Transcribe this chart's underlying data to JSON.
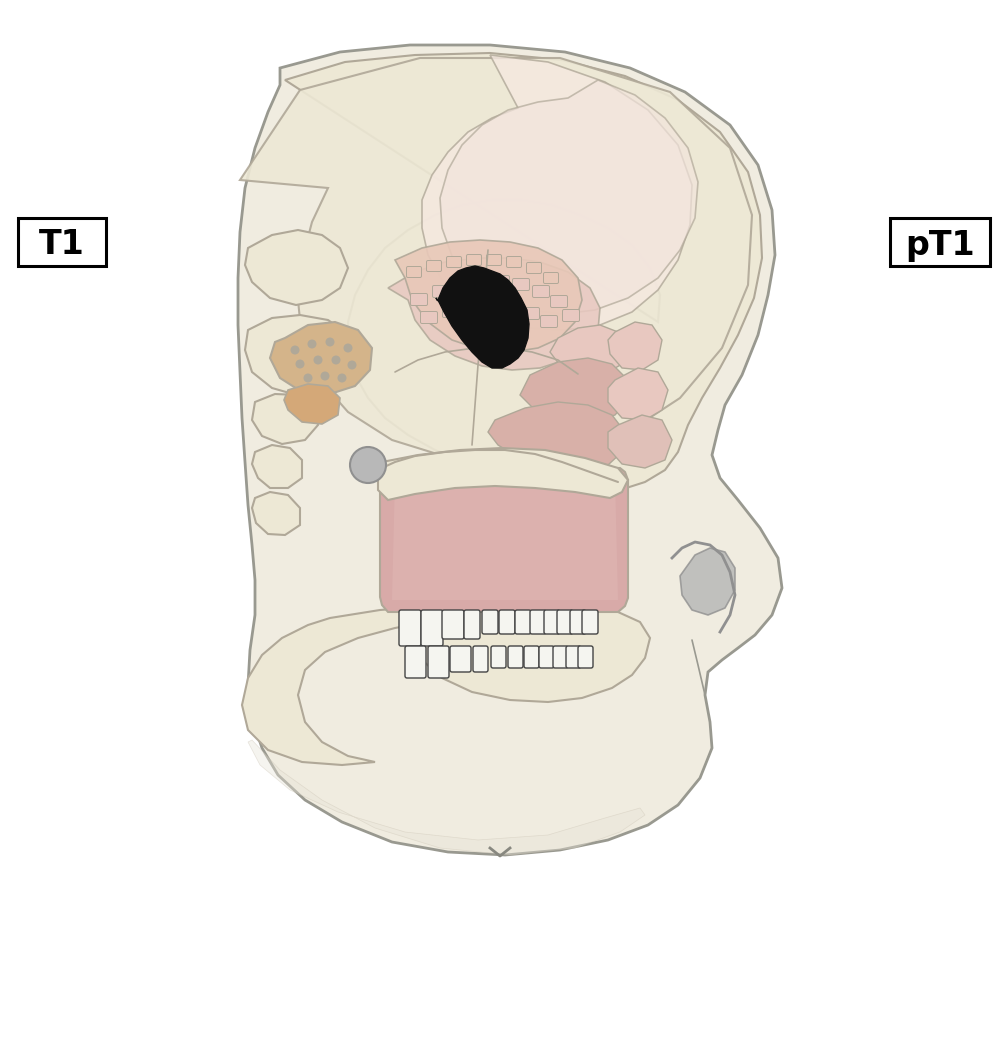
{
  "background_color": "#ffffff",
  "label_T1": "T1",
  "label_pT1": "pT1",
  "skin_color": "#f0ece0",
  "skin_outline_color": "#999990",
  "bone_fill_color": "#ede8d5",
  "bone_outline_color": "#b0a898",
  "sinus_pink_color": "#e8c8c0",
  "tumor_color": "#111111",
  "teeth_color": "#f5f5f0",
  "mastoid_color": "#d4b48a",
  "pink_region_color": "#d4a8a8",
  "gray_color": "#909090",
  "light_pink": "#e8d0c8",
  "medium_pink": "#d8b0a8",
  "peach_color": "#e8c8a0",
  "dark_outline": "#808075"
}
